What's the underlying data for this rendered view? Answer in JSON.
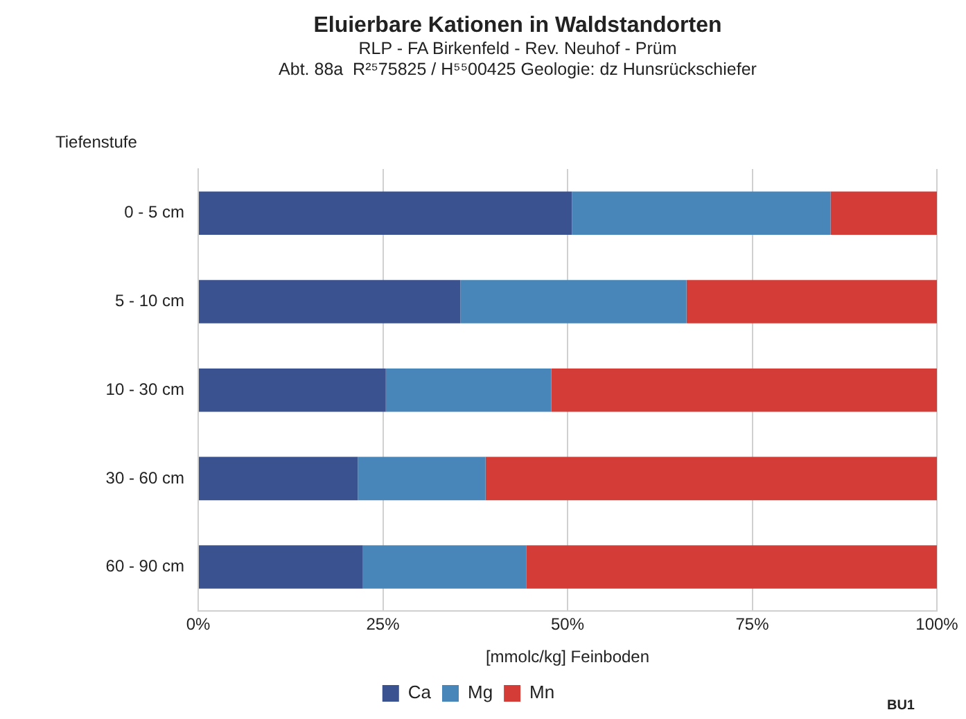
{
  "chart_data": {
    "type": "bar",
    "orientation": "horizontal",
    "stacked": true,
    "title": "Eluierbare Kationen in Waldstandorten",
    "subtitle": "RLP - FA Birkenfeld - Rev. Neuhof - Prüm\nAbt. 88a  R²⁵75825 / H⁵⁵00425 Geologie: dz Hunsrückschiefer",
    "ylabel": "Tiefenstufe",
    "xlabel": "[mmolc/kg] Feinboden",
    "annotations": [
      "BU1"
    ],
    "categories": [
      "0 - 5 cm",
      "5 - 10 cm",
      "10 - 30 cm",
      "30 - 60 cm",
      "60 - 90 cm"
    ],
    "series": [
      {
        "name": "Ca",
        "color": "#3b5290",
        "values": [
          50.6,
          35.5,
          25.4,
          21.6,
          22.3
        ]
      },
      {
        "name": "Mg",
        "color": "#4886ba",
        "values": [
          35.0,
          30.6,
          22.4,
          17.3,
          22.1
        ]
      },
      {
        "name": "Mn",
        "color": "#d43d37",
        "values": [
          14.4,
          33.9,
          52.2,
          61.1,
          55.6
        ]
      }
    ],
    "xlim": [
      0,
      100
    ],
    "xticks": [
      {
        "value": 0,
        "label": "0%"
      },
      {
        "value": 25,
        "label": "25%"
      },
      {
        "value": 50,
        "label": "50%"
      },
      {
        "value": 75,
        "label": "75%"
      },
      {
        "value": 100,
        "label": "100%"
      }
    ],
    "grid": "x",
    "legend": "bottom"
  }
}
